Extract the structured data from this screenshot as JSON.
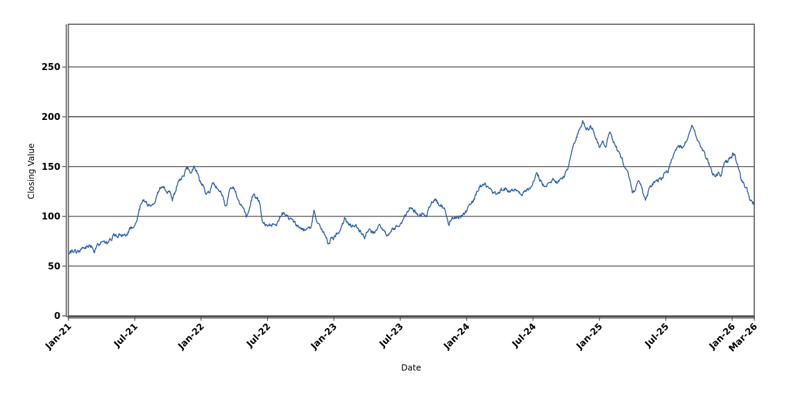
{
  "chart_data": {
    "type": "line",
    "title": "",
    "xlabel": "Date",
    "ylabel": "Closing Value",
    "legend": "none",
    "grid": "horizontal-black-lines",
    "x_span_months": 62,
    "x_range": [
      "Jan-21",
      "Mar-26"
    ],
    "ylim": [
      -2,
      293
    ],
    "y_ticks": [
      0,
      50,
      100,
      150,
      200,
      250
    ],
    "x_ticks": [
      {
        "label": "Jan-21",
        "month": 0
      },
      {
        "label": "Jul-21",
        "month": 6
      },
      {
        "label": "Jan-22",
        "month": 12
      },
      {
        "label": "Jul-22",
        "month": 18
      },
      {
        "label": "Jan-23",
        "month": 24
      },
      {
        "label": "Jul-23",
        "month": 30
      },
      {
        "label": "Jan-24",
        "month": 36
      },
      {
        "label": "Jul-24",
        "month": 42
      },
      {
        "label": "Jan-25",
        "month": 48
      },
      {
        "label": "Jul-25",
        "month": 54
      },
      {
        "label": "Jan-26",
        "month": 60
      },
      {
        "label": "Mar-26",
        "month": 62
      }
    ],
    "colors": {
      "line": "#2a5ea7",
      "gridline": "#000000",
      "frame": "#555555",
      "text": "#000000",
      "background": "#ffffff"
    },
    "line_width": 1.4,
    "series": [
      {
        "name": "Closing Value",
        "unit_x": "months-since-Jan-2021",
        "waypoints": [
          [
            0,
            63
          ],
          [
            0.3,
            64
          ],
          [
            0.7,
            65
          ],
          [
            1.1,
            66.5
          ],
          [
            1.5,
            68
          ],
          [
            1.9,
            70.5
          ],
          [
            2.15,
            70
          ],
          [
            2.35,
            65.5
          ],
          [
            2.6,
            71
          ],
          [
            2.9,
            73
          ],
          [
            3.2,
            75
          ],
          [
            3.5,
            73.5
          ],
          [
            3.8,
            76
          ],
          [
            4.1,
            80
          ],
          [
            4.5,
            81
          ],
          [
            5,
            81
          ],
          [
            5.35,
            83
          ],
          [
            5.55,
            87
          ],
          [
            5.85,
            88
          ],
          [
            6.1,
            93
          ],
          [
            6.35,
            103
          ],
          [
            6.6,
            114
          ],
          [
            6.85,
            116
          ],
          [
            7.1,
            113
          ],
          [
            7.4,
            111
          ],
          [
            7.65,
            110.5
          ],
          [
            7.95,
            119
          ],
          [
            8.3,
            130
          ],
          [
            8.6,
            131
          ],
          [
            8.9,
            123.5
          ],
          [
            9.15,
            126
          ],
          [
            9.4,
            115.5
          ],
          [
            9.85,
            132
          ],
          [
            10.2,
            138.5
          ],
          [
            10.5,
            143
          ],
          [
            10.8,
            148
          ],
          [
            11.1,
            144.5
          ],
          [
            11.4,
            150
          ],
          [
            11.7,
            143
          ],
          [
            11.9,
            135
          ],
          [
            12.2,
            130.5
          ],
          [
            12.4,
            124.5
          ],
          [
            12.8,
            125.5
          ],
          [
            13,
            136
          ],
          [
            13.25,
            132
          ],
          [
            13.45,
            128
          ],
          [
            13.7,
            124
          ],
          [
            13.9,
            122
          ],
          [
            14.25,
            109
          ],
          [
            14.6,
            126
          ],
          [
            14.9,
            130
          ],
          [
            15.2,
            122
          ],
          [
            15.5,
            113
          ],
          [
            15.8,
            111
          ],
          [
            16.1,
            100
          ],
          [
            16.45,
            112
          ],
          [
            16.65,
            121
          ],
          [
            17.1,
            118
          ],
          [
            17.3,
            113
          ],
          [
            17.5,
            97
          ],
          [
            18,
            89
          ],
          [
            18.3,
            92
          ],
          [
            18.6,
            90
          ],
          [
            19,
            95
          ],
          [
            19.3,
            104
          ],
          [
            19.6,
            101
          ],
          [
            19.9,
            98
          ],
          [
            20.2,
            95
          ],
          [
            20.5,
            94
          ],
          [
            20.8,
            89
          ],
          [
            21.1,
            86
          ],
          [
            21.4,
            87
          ],
          [
            21.8,
            88
          ],
          [
            22,
            92
          ],
          [
            22.2,
            107
          ],
          [
            22.45,
            95
          ],
          [
            22.7,
            90
          ],
          [
            23,
            85
          ],
          [
            23.2,
            81
          ],
          [
            23.5,
            72
          ],
          [
            23.75,
            77
          ],
          [
            24,
            78
          ],
          [
            24.2,
            82
          ],
          [
            24.6,
            87
          ],
          [
            25,
            99
          ],
          [
            25.3,
            93
          ],
          [
            25.6,
            90
          ],
          [
            26,
            91
          ],
          [
            26.3,
            85
          ],
          [
            26.8,
            79
          ],
          [
            27.1,
            87
          ],
          [
            27.4,
            86
          ],
          [
            27.7,
            83
          ],
          [
            28.1,
            90
          ],
          [
            28.4,
            85
          ],
          [
            28.8,
            82
          ],
          [
            29.3,
            87
          ],
          [
            29.8,
            90
          ],
          [
            30.1,
            93
          ],
          [
            30.6,
            105
          ],
          [
            30.9,
            110
          ],
          [
            31.2,
            106
          ],
          [
            31.6,
            101
          ],
          [
            32,
            102
          ],
          [
            32.3,
            98
          ],
          [
            32.8,
            113
          ],
          [
            33.2,
            116
          ],
          [
            33.6,
            111
          ],
          [
            34,
            107
          ],
          [
            34.35,
            92
          ],
          [
            34.7,
            97
          ],
          [
            35,
            100
          ],
          [
            35.4,
            99
          ],
          [
            35.9,
            104
          ],
          [
            36.3,
            110
          ],
          [
            36.7,
            118
          ],
          [
            37.1,
            129
          ],
          [
            37.6,
            134
          ],
          [
            38.1,
            127
          ],
          [
            38.5,
            122
          ],
          [
            38.9,
            125
          ],
          [
            39.3,
            128
          ],
          [
            39.7,
            126
          ],
          [
            40,
            126
          ],
          [
            40.3,
            128
          ],
          [
            40.9,
            122
          ],
          [
            41.3,
            124
          ],
          [
            41.7,
            128
          ],
          [
            42,
            135
          ],
          [
            42.35,
            144
          ],
          [
            42.7,
            136
          ],
          [
            43,
            130
          ],
          [
            43.3,
            132
          ],
          [
            43.6,
            135
          ],
          [
            43.9,
            136
          ],
          [
            44.2,
            133
          ],
          [
            44.5,
            138
          ],
          [
            44.8,
            141
          ],
          [
            45,
            146
          ],
          [
            45.2,
            150
          ],
          [
            45.6,
            170
          ],
          [
            45.9,
            178
          ],
          [
            46.2,
            188
          ],
          [
            46.5,
            196
          ],
          [
            46.75,
            189
          ],
          [
            47,
            187
          ],
          [
            47.2,
            191
          ],
          [
            47.5,
            184
          ],
          [
            47.75,
            176
          ],
          [
            48,
            169
          ],
          [
            48.3,
            173
          ],
          [
            48.6,
            169
          ],
          [
            48.9,
            185
          ],
          [
            49.2,
            176
          ],
          [
            49.5,
            170
          ],
          [
            49.8,
            163
          ],
          [
            50.05,
            157
          ],
          [
            50.35,
            148
          ],
          [
            50.6,
            143
          ],
          [
            50.8,
            133
          ],
          [
            51,
            122
          ],
          [
            51.3,
            130
          ],
          [
            51.6,
            136
          ],
          [
            52,
            121
          ],
          [
            52.2,
            117
          ],
          [
            52.5,
            127
          ],
          [
            52.8,
            132
          ],
          [
            53,
            135
          ],
          [
            53.4,
            136
          ],
          [
            53.8,
            141
          ],
          [
            54.2,
            146
          ],
          [
            54.5,
            156
          ],
          [
            54.8,
            165
          ],
          [
            55.1,
            172
          ],
          [
            55.5,
            169
          ],
          [
            55.9,
            176
          ],
          [
            56.15,
            186
          ],
          [
            56.4,
            190
          ],
          [
            56.6,
            185
          ],
          [
            56.9,
            176
          ],
          [
            57.2,
            169
          ],
          [
            57.5,
            162
          ],
          [
            57.8,
            156
          ],
          [
            58.1,
            145
          ],
          [
            58.5,
            141
          ],
          [
            58.75,
            143
          ],
          [
            58.9,
            138
          ],
          [
            59.2,
            152
          ],
          [
            59.6,
            156
          ],
          [
            59.9,
            159
          ],
          [
            60.1,
            164
          ],
          [
            60.4,
            156
          ],
          [
            60.6,
            149
          ],
          [
            60.8,
            138
          ],
          [
            61.1,
            131
          ],
          [
            61.3,
            129
          ],
          [
            61.5,
            120
          ],
          [
            61.7,
            116
          ],
          [
            62,
            112
          ]
        ]
      }
    ],
    "noise": {
      "amplitude": 1.8,
      "smoothing": 0.5,
      "points": 1300,
      "seed": 7
    }
  }
}
